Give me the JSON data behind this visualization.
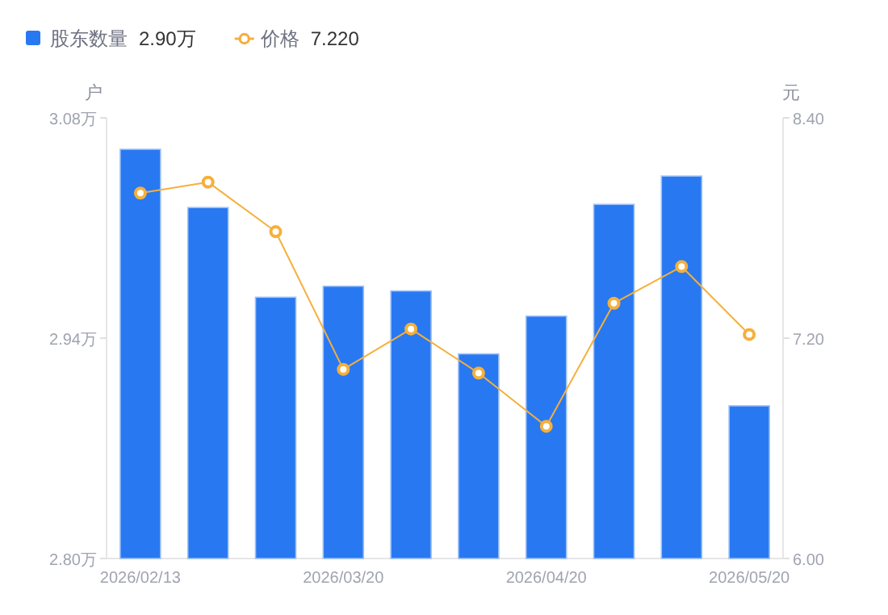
{
  "chart_data": {
    "type": "bar",
    "categories": [
      "2026/02/13",
      null,
      null,
      "2026/03/20",
      null,
      null,
      "2026/04/20",
      null,
      null,
      "2026/05/20"
    ],
    "series": [
      {
        "name": "股东数量",
        "color": "#2878f2",
        "values": [
          3.06,
          3.023,
          2.966,
          2.973,
          2.97,
          2.93,
          2.954,
          3.025,
          3.043,
          2.897
        ]
      },
      {
        "name": "价格",
        "type": "line",
        "axis": "y2",
        "color": "#f5b03c",
        "marker": "circle",
        "values": [
          7.99,
          8.05,
          7.78,
          7.03,
          7.25,
          7.01,
          6.72,
          7.39,
          7.59,
          7.22
        ]
      }
    ],
    "ylabel": "户",
    "y2label": "元",
    "ylim": [
      2.8,
      3.08
    ],
    "yticks": [
      {
        "value": 2.8,
        "label": "2.80万"
      },
      {
        "value": 2.94,
        "label": "2.94万"
      },
      {
        "value": 3.08,
        "label": "3.08万"
      }
    ],
    "y2lim": [
      6.0,
      8.4
    ],
    "y2ticks": [
      {
        "value": 6.0,
        "label": "6.00"
      },
      {
        "value": 7.2,
        "label": "7.20"
      },
      {
        "value": 8.4,
        "label": "8.40"
      }
    ],
    "legend": "top left",
    "annotations": [
      "2.90万",
      "7.220"
    ]
  }
}
